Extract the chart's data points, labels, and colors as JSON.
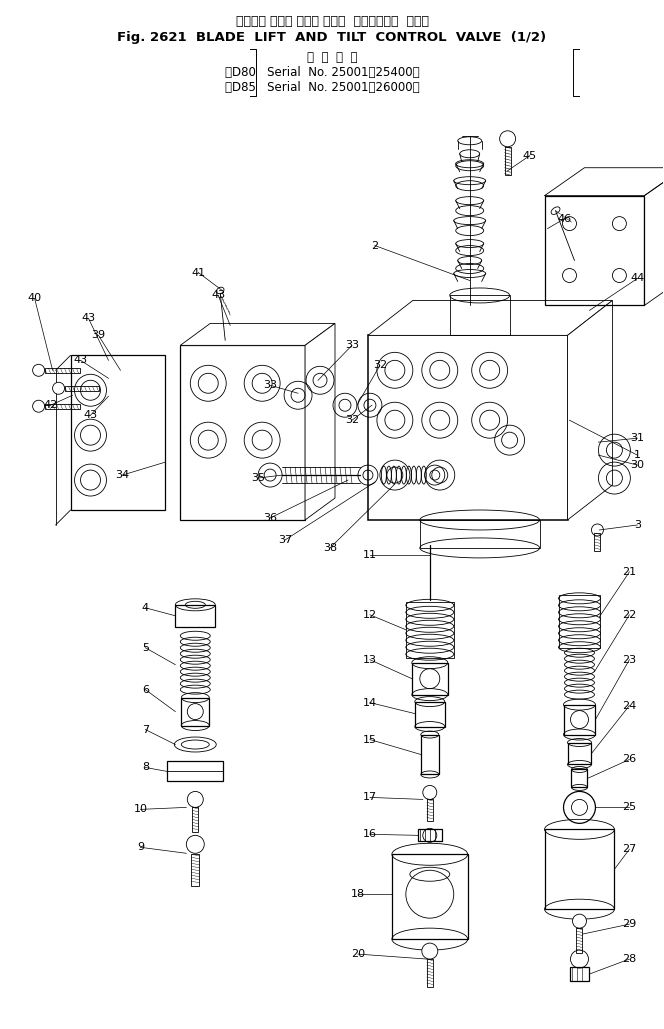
{
  "title_line1": "ブレード リフト および チルト  コントロール  バルブ",
  "title_line2": "Fig. 2621  BLADE  LIFT  AND  TILT  CONTROL  VALVE  (1/2)",
  "title_line3": "適  用  号  機",
  "title_line4": "（D80   Serial  No. 25001～25400）",
  "title_line5": "（D85   Serial  No. 25001～26000）",
  "bg_color": "#ffffff",
  "line_color": "#000000",
  "title_fontsize": 9.0,
  "label_fontsize": 8.0,
  "fig_width": 6.64,
  "fig_height": 10.29,
  "dpi": 100
}
